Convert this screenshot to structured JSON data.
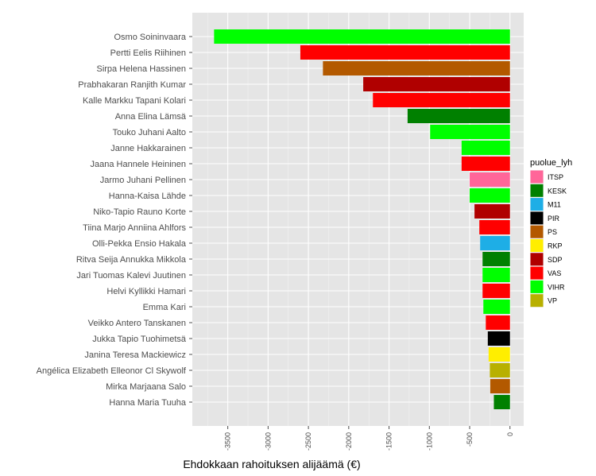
{
  "chart_data": {
    "type": "bar",
    "orientation": "horizontal",
    "title": "",
    "xlabel": "Ehdokkaan rahoituksen alijäämä (€)",
    "ylabel": "",
    "xlim": [
      -3940,
      170
    ],
    "x_ticks": [
      -3500,
      -3000,
      -2500,
      -2000,
      -1500,
      -1000,
      -500,
      0
    ],
    "grid": true,
    "legend_position": "right",
    "legend_title": "puolue_lyh",
    "legend": [
      {
        "party": "ITSP",
        "color": "#ff6699"
      },
      {
        "party": "KESK",
        "color": "#008000"
      },
      {
        "party": "M11",
        "color": "#1eaee6"
      },
      {
        "party": "PIR",
        "color": "#000000"
      },
      {
        "party": "PS",
        "color": "#b35900"
      },
      {
        "party": "RKP",
        "color": "#ffee00"
      },
      {
        "party": "SDP",
        "color": "#b00000"
      },
      {
        "party": "VAS",
        "color": "#ff0000"
      },
      {
        "party": "VIHR",
        "color": "#00ff00"
      },
      {
        "party": "VP",
        "color": "#b8b000"
      }
    ],
    "bars": [
      {
        "name": "Osmo Soininvaara",
        "value": -3670,
        "party": "VIHR"
      },
      {
        "name": "Pertti Eelis Riihinen",
        "value": -2600,
        "party": "VAS"
      },
      {
        "name": "Sirpa Helena Hassinen",
        "value": -2320,
        "party": "PS"
      },
      {
        "name": "Prabhakaran Ranjith Kumar",
        "value": -1820,
        "party": "SDP"
      },
      {
        "name": "Kalle Markku Tapani Kolari",
        "value": -1700,
        "party": "VAS"
      },
      {
        "name": "Anna Elina Lämsä",
        "value": -1270,
        "party": "KESK"
      },
      {
        "name": "Touko Juhani Aalto",
        "value": -990,
        "party": "VIHR"
      },
      {
        "name": "Janne Hakkarainen",
        "value": -600,
        "party": "VIHR"
      },
      {
        "name": "Jaana Hannele Heininen",
        "value": -600,
        "party": "VAS"
      },
      {
        "name": "Jarmo Juhani Pellinen",
        "value": -500,
        "party": "ITSP"
      },
      {
        "name": "Hanna-Kaisa Lähde",
        "value": -500,
        "party": "VIHR"
      },
      {
        "name": "Niko-Tapio Rauno Korte",
        "value": -440,
        "party": "SDP"
      },
      {
        "name": "Tiina Marjo Anniina Ahlfors",
        "value": -380,
        "party": "VAS"
      },
      {
        "name": "Olli-Pekka Ensio Hakala",
        "value": -370,
        "party": "M11"
      },
      {
        "name": "Ritva Seija Annukka Mikkola",
        "value": -340,
        "party": "KESK"
      },
      {
        "name": "Jari Tuomas Kalevi Juutinen",
        "value": -340,
        "party": "VIHR"
      },
      {
        "name": "Helvi Kyllikki Hamari",
        "value": -340,
        "party": "VAS"
      },
      {
        "name": "Emma Kari",
        "value": -330,
        "party": "VIHR"
      },
      {
        "name": "Veikko Antero Tanskanen",
        "value": -300,
        "party": "VAS"
      },
      {
        "name": "Jukka Tapio Tuohimetsä",
        "value": -275,
        "party": "PIR"
      },
      {
        "name": "Janina Teresa Mackiewicz",
        "value": -265,
        "party": "RKP"
      },
      {
        "name": "Angélica Elizabeth Elleonor Cl Skywolf",
        "value": -250,
        "party": "VP"
      },
      {
        "name": "Mirka Marjaana Salo",
        "value": -245,
        "party": "PS"
      },
      {
        "name": "Hanna Maria Tuuha",
        "value": -200,
        "party": "KESK"
      }
    ]
  }
}
